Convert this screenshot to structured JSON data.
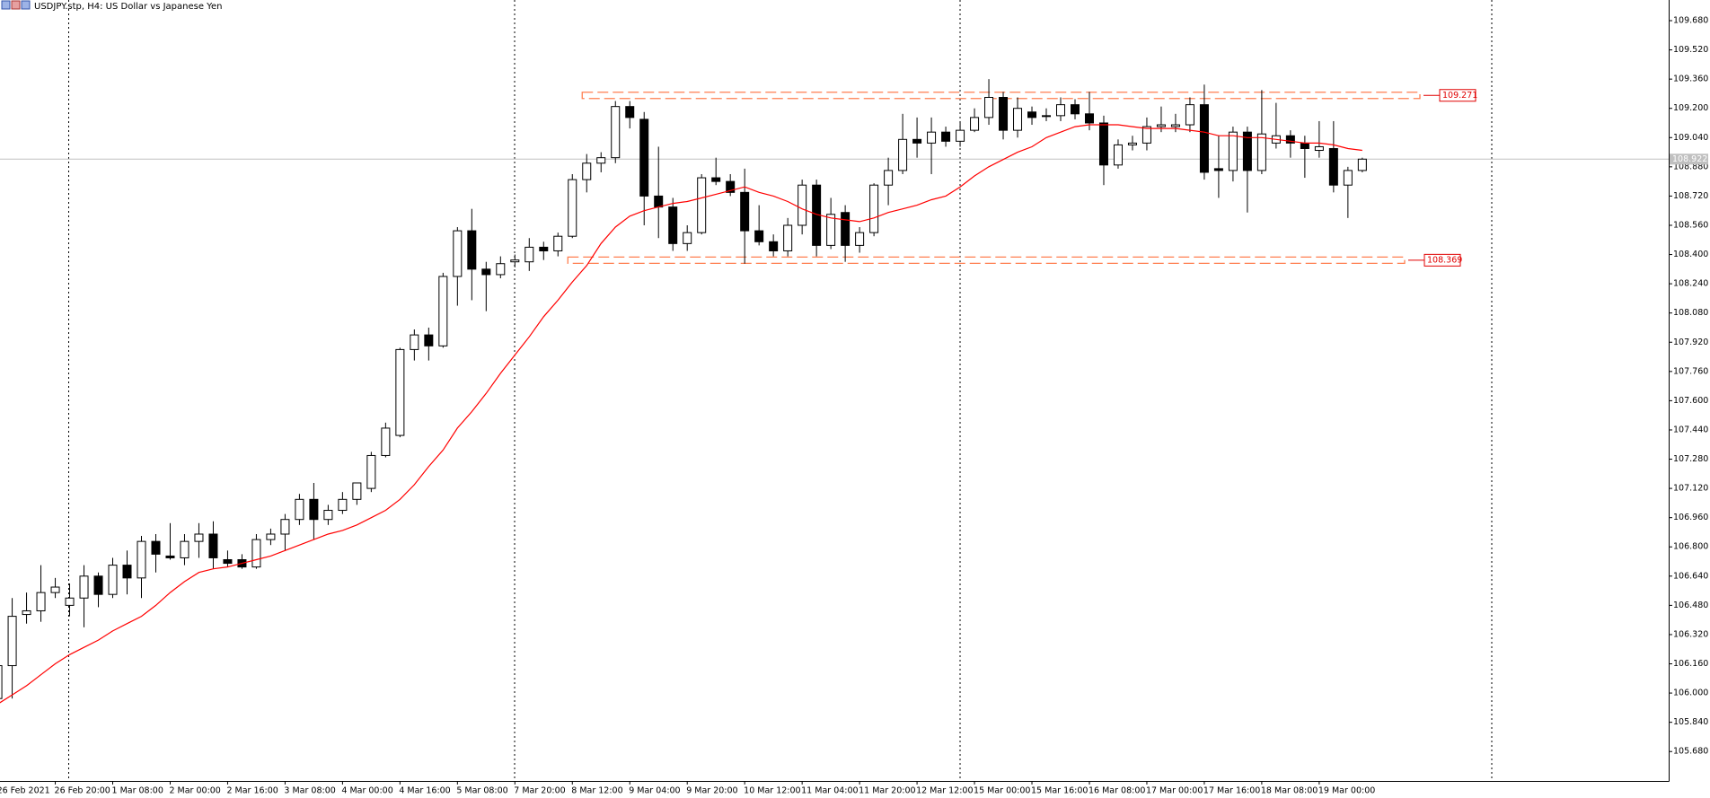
{
  "chart_data": {
    "type": "candlestick",
    "title": "USDJPY.stp, H4:  US Dollar vs Japanese Yen",
    "categories": [
      "26 Feb 2021",
      null,
      null,
      null,
      "26 Feb 20:00",
      null,
      null,
      null,
      "1 Mar 08:00",
      null,
      null,
      null,
      "2 Mar 00:00",
      null,
      null,
      null,
      "2 Mar 16:00",
      null,
      null,
      null,
      "3 Mar 08:00",
      null,
      null,
      null,
      "4 Mar 00:00",
      null,
      null,
      null,
      "4 Mar 16:00",
      null,
      null,
      null,
      "5 Mar 08:00",
      null,
      null,
      null,
      "7 Mar 20:00",
      null,
      null,
      null,
      "8 Mar 12:00",
      null,
      null,
      null,
      "9 Mar 04:00",
      null,
      null,
      null,
      "9 Mar 20:00",
      null,
      null,
      null,
      "10 Mar 12:00",
      null,
      null,
      null,
      "11 Mar 04:00",
      null,
      null,
      null,
      "11 Mar 20:00",
      null,
      null,
      null,
      "12 Mar 12:00",
      null,
      null,
      null,
      "15 Mar 00:00",
      null,
      null,
      null,
      "15 Mar 16:00",
      null,
      null,
      null,
      "16 Mar 08:00",
      null,
      null,
      null,
      "17 Mar 00:00",
      null,
      null,
      null,
      "17 Mar 16:00",
      null,
      null,
      null,
      "18 Mar 08:00",
      null,
      null,
      null,
      "19 Mar 00:00",
      null,
      null,
      null
    ],
    "open": [
      105.97,
      106.15,
      106.43,
      106.45,
      106.55,
      106.48,
      106.52,
      106.64,
      106.54,
      106.7,
      106.63,
      106.83,
      106.75,
      106.74,
      106.83,
      106.87,
      106.73,
      106.73,
      106.69,
      106.84,
      106.87,
      106.95,
      107.06,
      106.95,
      107.0,
      107.06,
      107.12,
      107.3,
      107.41,
      107.88,
      107.96,
      107.9,
      108.28,
      108.53,
      108.32,
      108.29,
      108.36,
      108.36,
      108.44,
      108.42,
      108.5,
      108.81,
      108.9,
      108.93,
      109.21,
      109.14,
      108.72,
      108.66,
      108.46,
      108.52,
      108.82,
      108.8,
      108.74,
      108.53,
      108.47,
      108.42,
      108.56,
      108.78,
      108.45,
      108.63,
      108.45,
      108.52,
      108.78,
      108.86,
      109.03,
      109.01,
      109.07,
      109.02,
      109.08,
      109.15,
      109.26,
      109.08,
      109.18,
      109.16,
      109.16,
      109.22,
      109.17,
      109.12,
      108.89,
      109.0,
      109.01,
      109.1,
      109.1,
      109.11,
      109.22,
      108.87,
      108.86,
      109.07,
      108.86,
      109.01,
      109.05,
      109.01,
      108.97,
      108.98,
      108.78,
      108.86
    ],
    "high": [
      106.17,
      106.52,
      106.55,
      106.7,
      106.63,
      106.6,
      106.7,
      106.66,
      106.74,
      106.78,
      106.86,
      106.87,
      106.93,
      106.87,
      106.93,
      106.94,
      106.78,
      106.76,
      106.87,
      106.9,
      106.98,
      107.09,
      107.15,
      107.03,
      107.1,
      107.15,
      107.32,
      107.48,
      107.89,
      107.99,
      108.0,
      108.3,
      108.55,
      108.65,
      108.36,
      108.39,
      108.4,
      108.49,
      108.47,
      108.52,
      108.84,
      108.95,
      108.96,
      109.24,
      109.24,
      109.18,
      108.99,
      108.71,
      108.56,
      108.84,
      108.93,
      108.84,
      108.87,
      108.67,
      108.51,
      108.6,
      108.81,
      108.81,
      108.71,
      108.67,
      108.55,
      108.79,
      108.93,
      109.17,
      109.15,
      109.15,
      109.1,
      109.13,
      109.2,
      109.36,
      109.29,
      109.26,
      109.21,
      109.2,
      109.26,
      109.25,
      109.29,
      109.16,
      109.03,
      109.05,
      109.15,
      109.21,
      109.17,
      109.26,
      109.33,
      109.05,
      109.1,
      109.1,
      109.3,
      109.23,
      109.08,
      109.05,
      109.13,
      109.13,
      108.88,
      108.93
    ],
    "low": [
      105.95,
      105.97,
      106.38,
      106.39,
      106.52,
      106.42,
      106.36,
      106.47,
      106.52,
      106.54,
      106.52,
      106.66,
      106.73,
      106.7,
      106.74,
      106.68,
      106.69,
      106.68,
      106.68,
      106.81,
      106.78,
      106.92,
      106.84,
      106.92,
      106.98,
      107.03,
      107.1,
      107.29,
      107.4,
      107.82,
      107.82,
      107.89,
      108.12,
      108.15,
      108.09,
      108.27,
      108.33,
      108.31,
      108.37,
      108.39,
      108.49,
      108.74,
      108.85,
      108.9,
      109.09,
      108.56,
      108.49,
      108.42,
      108.42,
      108.51,
      108.78,
      108.72,
      108.35,
      108.45,
      108.39,
      108.39,
      108.51,
      108.39,
      108.43,
      108.36,
      108.41,
      108.5,
      108.67,
      108.84,
      108.93,
      108.84,
      108.99,
      108.99,
      109.07,
      109.11,
      109.03,
      109.04,
      109.11,
      109.13,
      109.13,
      109.14,
      109.08,
      108.78,
      108.87,
      108.97,
      108.97,
      109.07,
      109.07,
      109.07,
      108.81,
      108.71,
      108.8,
      108.63,
      108.84,
      108.98,
      108.93,
      108.82,
      108.93,
      108.74,
      108.6,
      108.85
    ],
    "close": [
      106.15,
      106.42,
      106.45,
      106.55,
      106.58,
      106.52,
      106.64,
      106.54,
      106.7,
      106.63,
      106.83,
      106.76,
      106.74,
      106.83,
      106.87,
      106.74,
      106.71,
      106.69,
      106.84,
      106.87,
      106.95,
      107.06,
      106.95,
      107.0,
      107.06,
      107.15,
      107.3,
      107.45,
      107.88,
      107.96,
      107.9,
      108.28,
      108.53,
      108.32,
      108.29,
      108.35,
      108.37,
      108.44,
      108.42,
      108.5,
      108.81,
      108.9,
      108.93,
      109.21,
      109.15,
      108.72,
      108.66,
      108.46,
      108.52,
      108.82,
      108.8,
      108.74,
      108.53,
      108.47,
      108.42,
      108.56,
      108.78,
      108.45,
      108.62,
      108.45,
      108.52,
      108.78,
      108.86,
      109.03,
      109.01,
      109.07,
      109.02,
      109.08,
      109.15,
      109.26,
      109.08,
      109.2,
      109.15,
      109.16,
      109.22,
      109.17,
      109.12,
      108.89,
      109.0,
      109.01,
      109.1,
      109.11,
      109.11,
      109.22,
      108.85,
      108.86,
      109.07,
      108.86,
      109.06,
      109.05,
      109.01,
      108.98,
      108.99,
      108.78,
      108.86,
      108.922
    ],
    "up_color": "#ffffff",
    "down_color": "#000000",
    "moving_average": {
      "color": "#ff0000",
      "values": [
        105.94,
        105.99,
        106.04,
        106.1,
        106.16,
        106.21,
        106.25,
        106.29,
        106.34,
        106.38,
        106.42,
        106.48,
        106.55,
        106.61,
        106.66,
        106.68,
        106.69,
        106.71,
        106.73,
        106.75,
        106.78,
        106.81,
        106.84,
        106.87,
        106.89,
        106.92,
        106.96,
        107.0,
        107.06,
        107.14,
        107.24,
        107.33,
        107.45,
        107.54,
        107.64,
        107.75,
        107.85,
        107.95,
        108.06,
        108.15,
        108.25,
        108.34,
        108.46,
        108.55,
        108.61,
        108.64,
        108.66,
        108.68,
        108.69,
        108.71,
        108.73,
        108.75,
        108.77,
        108.74,
        108.72,
        108.69,
        108.65,
        108.62,
        108.6,
        108.59,
        108.58,
        108.6,
        108.63,
        108.65,
        108.67,
        108.7,
        108.72,
        108.77,
        108.83,
        108.88,
        108.92,
        108.96,
        108.99,
        109.04,
        109.07,
        109.1,
        109.11,
        109.11,
        109.11,
        109.1,
        109.09,
        109.09,
        109.09,
        109.08,
        109.07,
        109.05,
        109.05,
        109.04,
        109.04,
        109.03,
        109.02,
        109.01,
        109.01,
        109.0,
        108.98,
        108.97
      ]
    },
    "levels": [
      109.271,
      108.369
    ],
    "level_color": "#ff7f50",
    "bid": 108.922,
    "ylim": [
      105.519,
      109.793
    ],
    "yticks": [
      {
        "value": 109.68,
        "label": "109.680"
      },
      {
        "value": 109.52,
        "label": "109.520"
      },
      {
        "value": 109.36,
        "label": "109.360"
      },
      {
        "value": 109.2,
        "label": "109.200"
      },
      {
        "value": 109.04,
        "label": "109.040"
      },
      {
        "value": 108.88,
        "label": "108.880"
      },
      {
        "value": 108.72,
        "label": "108.720"
      },
      {
        "value": 108.56,
        "label": "108.560"
      },
      {
        "value": 108.4,
        "label": "108.400"
      },
      {
        "value": 108.24,
        "label": "108.240"
      },
      {
        "value": 108.08,
        "label": "108.080"
      },
      {
        "value": 107.92,
        "label": "107.920"
      },
      {
        "value": 107.76,
        "label": "107.760"
      },
      {
        "value": 107.6,
        "label": "107.600"
      },
      {
        "value": 107.44,
        "label": "107.440"
      },
      {
        "value": 107.28,
        "label": "107.280"
      },
      {
        "value": 107.12,
        "label": "107.120"
      },
      {
        "value": 106.96,
        "label": "106.960"
      },
      {
        "value": 106.8,
        "label": "106.800"
      },
      {
        "value": 106.64,
        "label": "106.640"
      },
      {
        "value": 106.48,
        "label": "106.480"
      },
      {
        "value": 106.32,
        "label": "106.320"
      },
      {
        "value": 106.16,
        "label": "106.160"
      },
      {
        "value": 106.0,
        "label": "106.000"
      },
      {
        "value": 105.84,
        "label": "105.840"
      },
      {
        "value": 105.68,
        "label": "105.680"
      }
    ],
    "grid": false
  }
}
